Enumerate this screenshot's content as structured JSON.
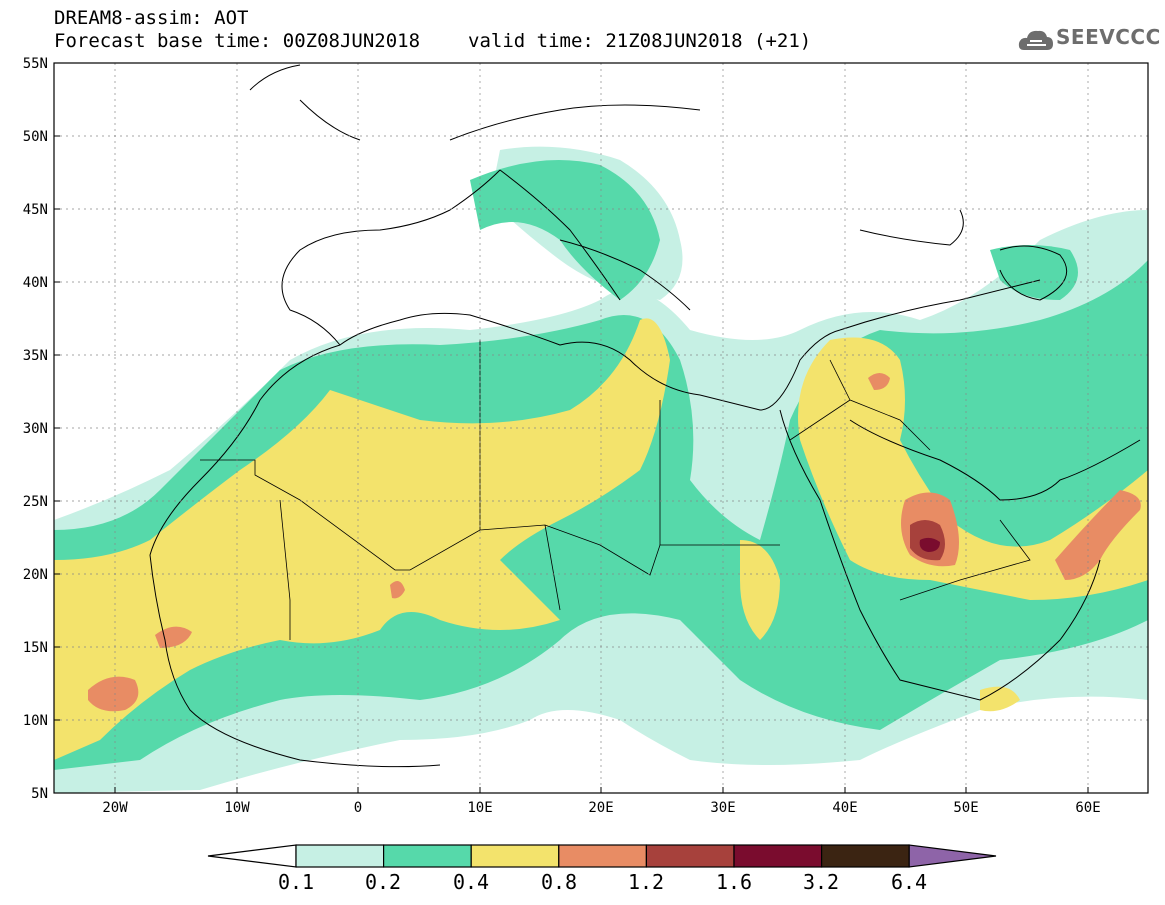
{
  "header": {
    "line1": "DREAM8-assim: AOT",
    "base_time": "Forecast base time: 00Z08JUN2018",
    "valid_time": "valid time: 21Z08JUN2018 (+21)"
  },
  "logo": {
    "text": "SEEVCCC",
    "icon": "cloud-icon"
  },
  "axes": {
    "lat_labels": [
      "55N",
      "50N",
      "45N",
      "40N",
      "35N",
      "30N",
      "25N",
      "20N",
      "15N",
      "10N",
      "5N"
    ],
    "lon_labels": [
      "20W",
      "10W",
      "0",
      "10E",
      "20E",
      "30E",
      "40E",
      "50E",
      "60E"
    ]
  },
  "colorbar": {
    "labels": [
      "0.1",
      "0.2",
      "0.4",
      "0.8",
      "1.2",
      "1.6",
      "3.2",
      "6.4"
    ],
    "colors": [
      "#ffffff",
      "#c6f0e4",
      "#56d9aa",
      "#f3e36c",
      "#e88c64",
      "#a7413c",
      "#7a0c2e",
      "#3b2412",
      "#8e64a8"
    ]
  }
}
